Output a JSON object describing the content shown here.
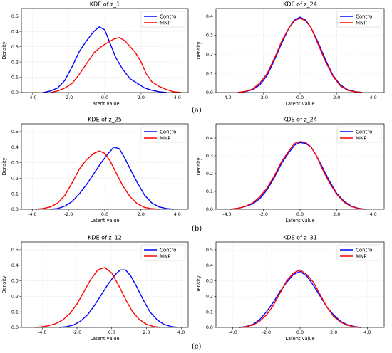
{
  "captions": [
    "(a)",
    "(b)",
    "(c)"
  ],
  "colors": {
    "Control": "#0000ff",
    "MNP": "#ff0000",
    "grid": "#e6e6e6"
  },
  "chart_data": [
    {
      "type": "line",
      "title": "KDE of z_1",
      "xlabel": "Latent value",
      "ylabel": "Density",
      "xlim": [
        -4.6,
        4.6
      ],
      "ylim": [
        0,
        0.55
      ],
      "xticks": [
        -4.0,
        -2.0,
        0.0,
        2.0,
        4.0
      ],
      "yticks": [
        0.0,
        0.1,
        0.2,
        0.3,
        0.4,
        0.5
      ],
      "grid": true,
      "legend": "top-right",
      "series": [
        {
          "name": "Control",
          "color": "#0000ff",
          "x": [
            -3.4,
            -3.0,
            -2.6,
            -2.2,
            -1.8,
            -1.4,
            -1.0,
            -0.6,
            -0.3,
            0.0,
            0.3,
            0.6,
            1.0,
            1.4,
            1.8,
            2.2,
            2.6,
            3.0,
            3.4
          ],
          "y": [
            0.0,
            0.01,
            0.03,
            0.08,
            0.17,
            0.27,
            0.34,
            0.4,
            0.43,
            0.41,
            0.32,
            0.23,
            0.15,
            0.09,
            0.06,
            0.03,
            0.015,
            0.005,
            0.0
          ]
        },
        {
          "name": "MNP",
          "color": "#ff0000",
          "x": [
            -3.0,
            -2.6,
            -2.2,
            -1.8,
            -1.4,
            -1.0,
            -0.6,
            -0.2,
            0.2,
            0.5,
            0.8,
            1.1,
            1.4,
            1.7,
            2.0,
            2.3,
            2.6,
            3.0,
            3.4,
            3.8,
            4.2
          ],
          "y": [
            0.0,
            0.01,
            0.03,
            0.06,
            0.12,
            0.19,
            0.26,
            0.3,
            0.33,
            0.35,
            0.36,
            0.34,
            0.3,
            0.26,
            0.2,
            0.12,
            0.07,
            0.04,
            0.02,
            0.005,
            0.0
          ]
        }
      ]
    },
    {
      "type": "line",
      "title": "KDE of z_24",
      "xlabel": "Latent value",
      "ylabel": "Density",
      "xlim": [
        -4.6,
        4.6
      ],
      "ylim": [
        0,
        0.44
      ],
      "xticks": [
        -4.0,
        -2.0,
        0.0,
        2.0,
        4.0
      ],
      "yticks": [
        0.0,
        0.1,
        0.2,
        0.3,
        0.4
      ],
      "grid": true,
      "legend": "top-right",
      "series": [
        {
          "name": "Control",
          "color": "#0000ff",
          "x": [
            -3.4,
            -3.0,
            -2.6,
            -2.2,
            -1.8,
            -1.4,
            -1.0,
            -0.6,
            -0.3,
            0.0,
            0.3,
            0.6,
            1.0,
            1.4,
            1.8,
            2.2,
            2.6,
            3.0,
            3.4
          ],
          "y": [
            0.0,
            0.005,
            0.015,
            0.04,
            0.09,
            0.17,
            0.26,
            0.34,
            0.38,
            0.395,
            0.38,
            0.34,
            0.26,
            0.17,
            0.09,
            0.04,
            0.015,
            0.005,
            0.0
          ]
        },
        {
          "name": "MNP",
          "color": "#ff0000",
          "x": [
            -3.4,
            -3.0,
            -2.6,
            -2.2,
            -1.8,
            -1.4,
            -1.0,
            -0.6,
            -0.3,
            0.0,
            0.3,
            0.6,
            1.0,
            1.4,
            1.8,
            2.2,
            2.6,
            3.0,
            3.4
          ],
          "y": [
            0.0,
            0.006,
            0.018,
            0.05,
            0.1,
            0.18,
            0.27,
            0.34,
            0.375,
            0.39,
            0.375,
            0.34,
            0.25,
            0.16,
            0.085,
            0.035,
            0.012,
            0.004,
            0.0
          ]
        }
      ]
    },
    {
      "type": "line",
      "title": "KDE of z_25",
      "xlabel": "Latent value",
      "ylabel": "Density",
      "xlim": [
        -4.6,
        4.6
      ],
      "ylim": [
        0,
        0.55
      ],
      "xticks": [
        -4.0,
        -2.0,
        0.0,
        2.0,
        4.0
      ],
      "yticks": [
        0.0,
        0.1,
        0.2,
        0.3,
        0.4,
        0.5
      ],
      "grid": true,
      "legend": "top-right",
      "series": [
        {
          "name": "Control",
          "color": "#0000ff",
          "x": [
            -3.0,
            -2.6,
            -2.2,
            -1.8,
            -1.4,
            -1.0,
            -0.6,
            -0.2,
            0.2,
            0.5,
            0.8,
            1.1,
            1.4,
            1.8,
            2.2,
            2.6,
            3.0,
            3.4,
            3.8
          ],
          "y": [
            0.0,
            0.005,
            0.02,
            0.05,
            0.1,
            0.16,
            0.23,
            0.3,
            0.36,
            0.4,
            0.39,
            0.33,
            0.26,
            0.17,
            0.09,
            0.04,
            0.015,
            0.005,
            0.0
          ]
        },
        {
          "name": "MNP",
          "color": "#ff0000",
          "x": [
            -3.8,
            -3.4,
            -3.0,
            -2.6,
            -2.2,
            -1.8,
            -1.4,
            -1.0,
            -0.6,
            -0.3,
            0.0,
            0.3,
            0.6,
            1.0,
            1.4,
            1.8,
            2.2,
            2.6,
            3.0
          ],
          "y": [
            0.0,
            0.005,
            0.015,
            0.04,
            0.09,
            0.17,
            0.26,
            0.32,
            0.36,
            0.375,
            0.36,
            0.31,
            0.24,
            0.15,
            0.08,
            0.035,
            0.012,
            0.004,
            0.0
          ]
        }
      ]
    },
    {
      "type": "line",
      "title": "KDE of z_24",
      "xlabel": "Latent value",
      "ylabel": "Density",
      "xlim": [
        -4.6,
        4.6
      ],
      "ylim": [
        0,
        0.48
      ],
      "xticks": [
        -4.0,
        -2.0,
        0.0,
        2.0,
        4.0
      ],
      "yticks": [
        0.0,
        0.1,
        0.2,
        0.3,
        0.4
      ],
      "grid": true,
      "legend": "top-right",
      "series": [
        {
          "name": "Control",
          "color": "#0000ff",
          "x": [
            -3.8,
            -3.4,
            -3.0,
            -2.6,
            -2.2,
            -1.8,
            -1.4,
            -1.0,
            -0.6,
            -0.3,
            0.0,
            0.3,
            0.6,
            0.9,
            1.2,
            1.6,
            2.0,
            2.4,
            2.8,
            3.2,
            3.6
          ],
          "y": [
            0.0,
            0.005,
            0.015,
            0.03,
            0.06,
            0.11,
            0.18,
            0.26,
            0.32,
            0.36,
            0.375,
            0.37,
            0.35,
            0.3,
            0.24,
            0.16,
            0.09,
            0.045,
            0.018,
            0.005,
            0.0
          ]
        },
        {
          "name": "MNP",
          "color": "#ff0000",
          "x": [
            -3.8,
            -3.4,
            -3.0,
            -2.6,
            -2.2,
            -1.8,
            -1.4,
            -1.0,
            -0.6,
            -0.3,
            0.0,
            0.3,
            0.6,
            0.9,
            1.2,
            1.6,
            2.0,
            2.4,
            2.8,
            3.2,
            3.6
          ],
          "y": [
            0.0,
            0.006,
            0.016,
            0.035,
            0.07,
            0.12,
            0.19,
            0.27,
            0.33,
            0.37,
            0.38,
            0.375,
            0.35,
            0.3,
            0.23,
            0.15,
            0.085,
            0.04,
            0.015,
            0.004,
            0.0
          ]
        }
      ]
    },
    {
      "type": "line",
      "title": "KDE of z_12",
      "xlabel": "Latent value",
      "ylabel": "Density",
      "xlim": [
        -5.2,
        4.4
      ],
      "ylim": [
        0,
        0.55
      ],
      "xticks": [
        -4.0,
        -2.0,
        0.0,
        2.0,
        4.0
      ],
      "yticks": [
        0.0,
        0.1,
        0.2,
        0.3,
        0.4,
        0.5
      ],
      "grid": true,
      "legend": "top-right",
      "series": [
        {
          "name": "Control",
          "color": "#0000ff",
          "x": [
            -3.0,
            -2.6,
            -2.2,
            -1.8,
            -1.4,
            -1.0,
            -0.6,
            -0.2,
            0.2,
            0.5,
            0.8,
            1.1,
            1.4,
            1.8,
            2.2,
            2.6,
            3.0,
            3.4,
            3.8
          ],
          "y": [
            0.0,
            0.005,
            0.015,
            0.04,
            0.08,
            0.14,
            0.21,
            0.28,
            0.34,
            0.37,
            0.37,
            0.33,
            0.27,
            0.18,
            0.1,
            0.05,
            0.02,
            0.006,
            0.0
          ]
        },
        {
          "name": "MNP",
          "color": "#ff0000",
          "x": [
            -4.4,
            -4.0,
            -3.6,
            -3.2,
            -2.8,
            -2.4,
            -2.0,
            -1.6,
            -1.2,
            -0.8,
            -0.4,
            0.0,
            0.4,
            0.8,
            1.2,
            1.6,
            2.0,
            2.4,
            2.8
          ],
          "y": [
            0.0,
            0.004,
            0.012,
            0.025,
            0.05,
            0.09,
            0.15,
            0.23,
            0.31,
            0.37,
            0.385,
            0.35,
            0.27,
            0.18,
            0.1,
            0.05,
            0.02,
            0.006,
            0.0
          ]
        }
      ]
    },
    {
      "type": "line",
      "title": "KDE of z_31",
      "xlabel": "Latent value",
      "ylabel": "Density",
      "xlim": [
        -5.0,
        5.0
      ],
      "ylim": [
        0,
        0.55
      ],
      "xticks": [
        -4.0,
        -2.0,
        0.0,
        2.0,
        4.0
      ],
      "yticks": [
        0.0,
        0.1,
        0.2,
        0.3,
        0.4,
        0.5
      ],
      "grid": true,
      "legend": "top-right",
      "series": [
        {
          "name": "Control",
          "color": "#0000ff",
          "x": [
            -3.6,
            -3.2,
            -2.8,
            -2.4,
            -2.0,
            -1.6,
            -1.2,
            -0.8,
            -0.4,
            0.0,
            0.4,
            0.8,
            1.2,
            1.6,
            2.0,
            2.4,
            2.8,
            3.2,
            3.6
          ],
          "y": [
            0.0,
            0.006,
            0.02,
            0.05,
            0.1,
            0.16,
            0.23,
            0.29,
            0.34,
            0.36,
            0.33,
            0.27,
            0.2,
            0.13,
            0.08,
            0.04,
            0.018,
            0.006,
            0.0
          ]
        },
        {
          "name": "MNP",
          "color": "#ff0000",
          "x": [
            -3.6,
            -3.2,
            -2.8,
            -2.4,
            -2.0,
            -1.6,
            -1.2,
            -0.8,
            -0.4,
            0.0,
            0.4,
            0.8,
            1.2,
            1.6,
            2.0,
            2.4,
            2.8,
            3.2,
            3.6
          ],
          "y": [
            0.0,
            0.005,
            0.015,
            0.04,
            0.08,
            0.14,
            0.22,
            0.3,
            0.35,
            0.37,
            0.34,
            0.29,
            0.21,
            0.13,
            0.07,
            0.035,
            0.014,
            0.004,
            0.0
          ]
        }
      ]
    }
  ]
}
